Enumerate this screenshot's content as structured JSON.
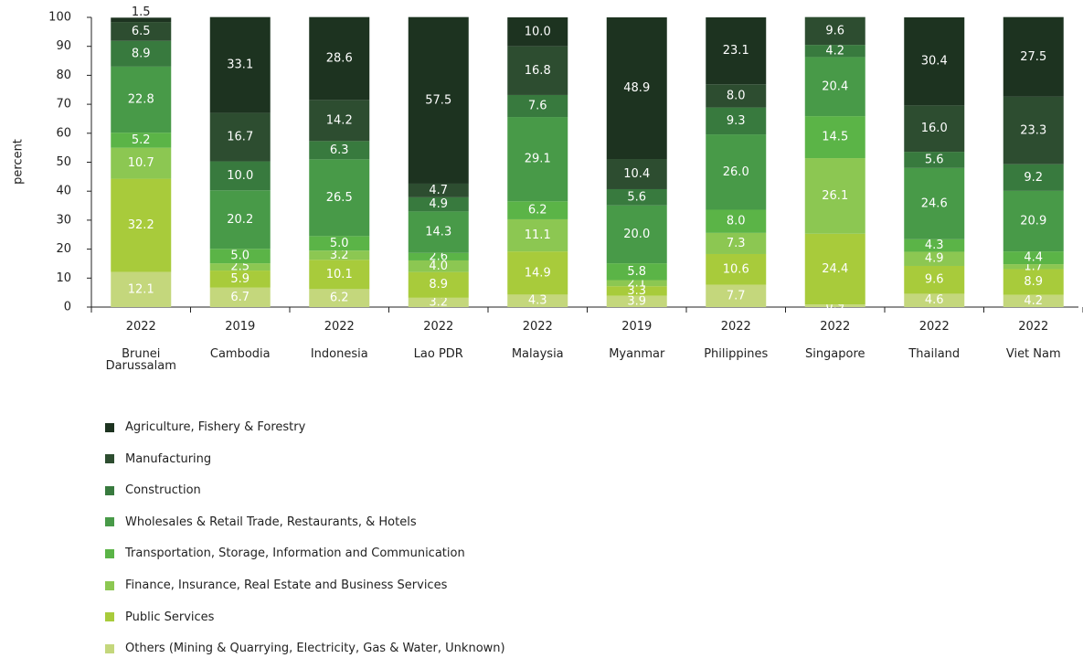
{
  "chart_data": {
    "type": "stacked_bar",
    "y_label": "percent",
    "ylim": [
      0,
      100
    ],
    "yticks": [
      0,
      10,
      20,
      30,
      40,
      50,
      60,
      70,
      80,
      90,
      100
    ],
    "categories": [
      "Brunei Darussalam",
      "Cambodia",
      "Indonesia",
      "Lao PDR",
      "Malaysia",
      "Myanmar",
      "Philippines",
      "Singapore",
      "Thailand",
      "Viet Nam"
    ],
    "years": [
      "2022",
      "2019",
      "2022",
      "2022",
      "2022",
      "2019",
      "2022",
      "2022",
      "2022",
      "2022"
    ],
    "series": [
      {
        "name": "Agriculture, Fishery & Forestry",
        "color": "#1d3320",
        "values": [
          1.5,
          33.1,
          28.6,
          57.5,
          10.0,
          48.9,
          23.1,
          null,
          30.4,
          27.5
        ],
        "value_labels": [
          "1.5",
          "33.1",
          "28.6",
          "57.5",
          "10.0",
          "48.9",
          "23.1",
          null,
          "30.4",
          "27.5"
        ]
      },
      {
        "name": "Manufacturing",
        "color": "#2d4d30",
        "values": [
          6.5,
          16.7,
          14.2,
          4.7,
          16.8,
          10.4,
          8.0,
          9.6,
          16.0,
          23.3
        ],
        "value_labels": [
          "6.5",
          "16.7",
          "14.2",
          "4.7",
          "16.8",
          "10.4",
          "8.0",
          "9.6",
          "16.0",
          "23.3"
        ]
      },
      {
        "name": "Construction",
        "color": "#387a3e",
        "values": [
          8.9,
          10.0,
          6.3,
          4.9,
          7.6,
          5.6,
          9.3,
          4.2,
          5.6,
          9.2
        ],
        "value_labels": [
          "8.9",
          "10.0",
          "6.3",
          "4.9",
          "7.6",
          "5.6",
          "9.3",
          "4.2",
          "5.6",
          "9.2"
        ]
      },
      {
        "name": "Wholesales & Retail Trade, Restaurants, & Hotels",
        "color": "#489a48",
        "values": [
          22.8,
          20.2,
          26.5,
          14.3,
          29.1,
          20.0,
          26.0,
          20.4,
          24.6,
          20.9
        ],
        "value_labels": [
          "22.8",
          "20.2",
          "26.5",
          "14.3",
          "29.1",
          "20.0",
          "26.0",
          "20.4",
          "24.6",
          "20.9"
        ]
      },
      {
        "name": "Transportation, Storage, Information and Communication",
        "color": "#5bb447",
        "values": [
          5.2,
          5.0,
          5.0,
          2.6,
          6.2,
          5.8,
          8.0,
          14.5,
          4.3,
          4.4
        ],
        "value_labels": [
          "5.2",
          "5.0",
          "5.0",
          "2.6",
          "6.2",
          "5.8",
          "8.0",
          "14.5",
          "4.3",
          "4.4"
        ]
      },
      {
        "name": "Finance, Insurance, Real Estate and Business Services",
        "color": "#8cc752",
        "values": [
          10.7,
          2.5,
          3.2,
          4.0,
          11.1,
          2.1,
          7.3,
          26.1,
          4.9,
          1.7
        ],
        "value_labels": [
          "10.7",
          "2.5",
          "3.2",
          "4.0",
          "11.1",
          "2.1",
          "7.3",
          "26.1",
          "4.9",
          "1.7"
        ]
      },
      {
        "name": "Public Services",
        "color": "#a8cb3b",
        "values": [
          32.2,
          5.9,
          10.1,
          8.9,
          14.9,
          3.3,
          10.6,
          24.4,
          9.6,
          8.9
        ],
        "value_labels": [
          "32.2",
          "5.9",
          "10.1",
          "8.9",
          "14.9",
          "3.3",
          "10.6",
          "24.4",
          "9.6",
          "8.9"
        ]
      },
      {
        "name": "Others (Mining & Quarrying, Electricity, Gas & Water, Unknown)",
        "color": "#c4d77c",
        "values": [
          12.1,
          6.7,
          6.2,
          3.2,
          4.3,
          3.9,
          7.7,
          0.9,
          4.6,
          4.2
        ],
        "value_labels": [
          "12.1",
          "6.7",
          "6.2",
          "3.2",
          "4.3",
          "3.9",
          "7.7",
          "0.9",
          "4.6",
          "4.2"
        ]
      }
    ]
  }
}
